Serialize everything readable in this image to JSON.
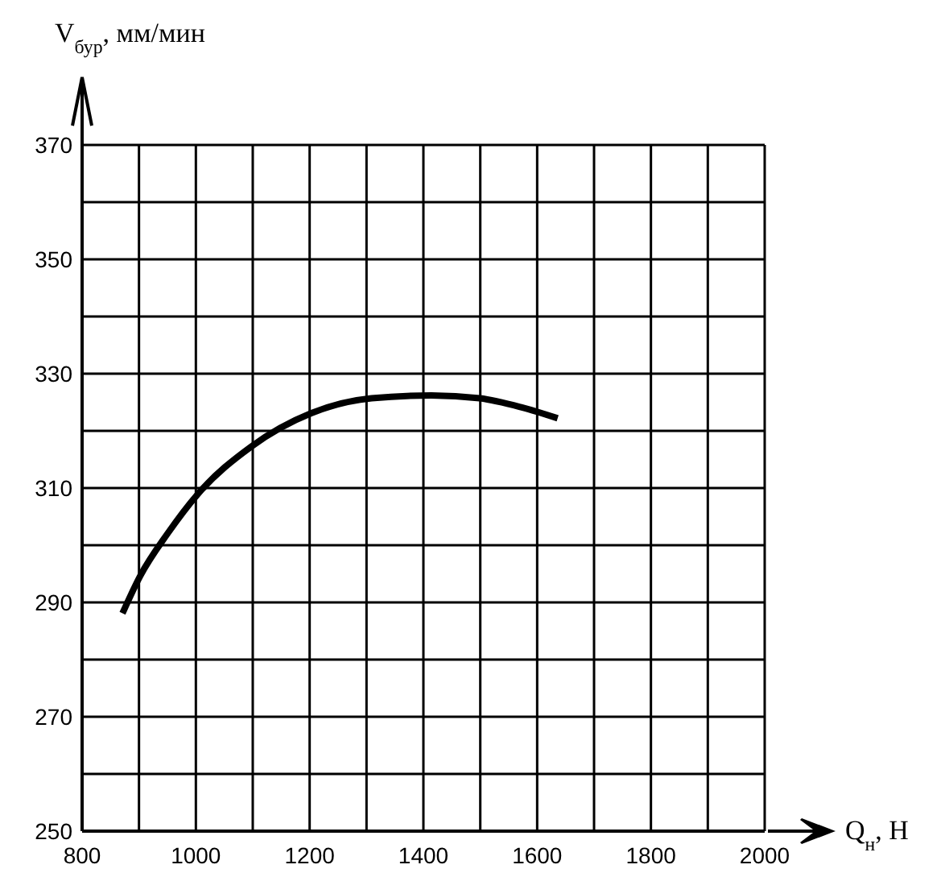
{
  "chart_data": {
    "type": "line",
    "xlabel": "Q$_{н}$, Н",
    "ylabel": "V$_{бур}$, мм/мин",
    "series": [
      {
        "color": "#000000",
        "x": [
          871,
          902,
          950,
          1003,
          1098,
          1203,
          1309,
          1414,
          1499,
          1573,
          1636
        ],
        "values": [
          288.1,
          294.6,
          302,
          308.9,
          317.3,
          323.1,
          325.7,
          326.2,
          325.7,
          324.1,
          322.2
        ]
      }
    ],
    "xlim": [
      800,
      2000
    ],
    "xticks": [
      800,
      {
        "value": 900,
        "label": null
      },
      1000,
      {
        "value": 1100,
        "label": null
      },
      1200,
      {
        "value": 1300,
        "label": null
      },
      1400,
      {
        "value": 1500,
        "label": null
      },
      1600,
      {
        "value": 1700,
        "label": null
      },
      1800,
      {
        "value": 1900,
        "label": null
      },
      2000
    ],
    "ylim": [
      250,
      370
    ],
    "yticks": [
      250,
      {
        "value": 260,
        "label": null
      },
      270,
      {
        "value": 280,
        "label": null
      },
      290,
      {
        "value": 300,
        "label": null
      },
      310,
      {
        "value": 320,
        "label": null
      },
      330,
      {
        "value": 340,
        "label": null
      },
      350,
      {
        "value": 360,
        "label": null
      },
      370
    ],
    "grid": true,
    "marker": "none",
    "line_style": "solid"
  }
}
